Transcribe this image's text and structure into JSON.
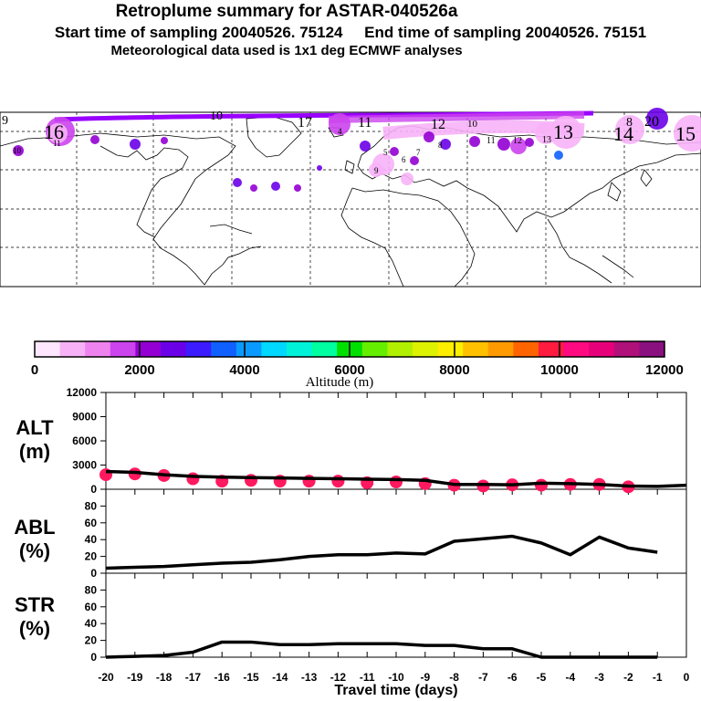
{
  "header": {
    "title": "Retroplume summary for ASTAR-040526a",
    "sampling": "Start time of sampling 20040526. 75124     End time of sampling 20040526. 75151",
    "met": "Meteorological data used is 1x1 deg ECMWF analyses"
  },
  "map": {
    "day_labels": [
      "9",
      "16",
      "10",
      "17",
      "11",
      "12",
      "13",
      "8",
      "14",
      "20",
      "15",
      "10",
      "11",
      "12",
      "13",
      "4",
      "5",
      "6",
      "7",
      "8",
      "9",
      "10",
      "11"
    ]
  },
  "colorbar": {
    "ticks": [
      "0",
      "2000",
      "4000",
      "6000",
      "8000",
      "10000",
      "12000"
    ],
    "title": "Altitude (m)",
    "colors": [
      "#ffe6ff",
      "#f7b2f7",
      "#ee82ee",
      "#cc44ee",
      "#9400d3",
      "#6a00e8",
      "#3c1cff",
      "#1060ff",
      "#0a9aff",
      "#00d8ff",
      "#00f2d8",
      "#00ffa0",
      "#00e000",
      "#66ee00",
      "#b0f000",
      "#ddf200",
      "#ffee00",
      "#ffc000",
      "#ff9a00",
      "#ff6400",
      "#ff1a40",
      "#ff0a80",
      "#e6007a",
      "#b0107a",
      "#8a1080"
    ]
  },
  "panels": {
    "alt": {
      "label": "ALT",
      "unit": "(m)"
    },
    "abl": {
      "label": "ABL",
      "unit": "(%)"
    },
    "str": {
      "label": "STR",
      "unit": "(%)"
    }
  },
  "chart_data": [
    {
      "type": "line",
      "panel": "ALT",
      "title": "",
      "xlabel": "Travel time (days)",
      "ylabel": "ALT (m)",
      "x": [
        -20,
        -19,
        -18,
        -17,
        -16,
        -15,
        -14,
        -13,
        -12,
        -11,
        -10,
        -9,
        -8,
        -7,
        -6,
        -5,
        -4,
        -3,
        -2,
        -1,
        0
      ],
      "y": [
        2200,
        2100,
        1800,
        1600,
        1500,
        1450,
        1400,
        1350,
        1300,
        1250,
        1200,
        1100,
        600,
        600,
        550,
        750,
        700,
        600,
        400,
        350,
        500
      ],
      "ylim": [
        0,
        12000
      ],
      "yticks": [
        "12000",
        "9000",
        "6000",
        "3000",
        "0"
      ],
      "markers": {
        "x": [
          -20,
          -19,
          -18,
          -17,
          -16,
          -15,
          -14,
          -13,
          -12,
          -11,
          -10,
          -9,
          -8,
          -7,
          -6,
          -5,
          -4,
          -3,
          -2
        ],
        "y": [
          1800,
          1900,
          1700,
          1300,
          1000,
          1100,
          1000,
          1000,
          1000,
          800,
          900,
          700,
          500,
          400,
          550,
          500,
          600,
          600,
          300
        ],
        "color": "#ff1a60"
      }
    },
    {
      "type": "line",
      "panel": "ABL",
      "ylabel": "ABL (%)",
      "x": [
        -20,
        -19,
        -18,
        -17,
        -16,
        -15,
        -14,
        -13,
        -12,
        -11,
        -10,
        -9,
        -8,
        -7,
        -6,
        -5,
        -4,
        -3,
        -2,
        -1
      ],
      "y": [
        6,
        7,
        8,
        10,
        12,
        13,
        16,
        20,
        22,
        22,
        24,
        23,
        38,
        41,
        44,
        36,
        22,
        43,
        30,
        25
      ],
      "ylim": [
        0,
        100
      ],
      "yticks": [
        "80",
        "60",
        "40",
        "20",
        "0"
      ]
    },
    {
      "type": "line",
      "panel": "STR",
      "ylabel": "STR (%)",
      "x": [
        -20,
        -19,
        -18,
        -17,
        -16,
        -15,
        -14,
        -13,
        -12,
        -11,
        -10,
        -9,
        -8,
        -7,
        -6,
        -5,
        -4,
        -3,
        -2,
        -1
      ],
      "y": [
        0,
        1,
        2,
        6,
        18,
        18,
        15,
        15,
        16,
        16,
        16,
        14,
        14,
        10,
        10,
        0,
        0,
        0,
        0,
        0
      ],
      "ylim": [
        0,
        100
      ],
      "yticks": [
        "80",
        "60",
        "40",
        "20",
        "0"
      ]
    }
  ],
  "xaxis": {
    "ticks": [
      "-20",
      "-19",
      "-18",
      "-17",
      "-16",
      "-15",
      "-14",
      "-13",
      "-12",
      "-11",
      "-10",
      "-9",
      "-8",
      "-7",
      "-6",
      "-5",
      "-4",
      "-3",
      "-2",
      "-1",
      "0"
    ],
    "title": "Travel time (days)"
  }
}
